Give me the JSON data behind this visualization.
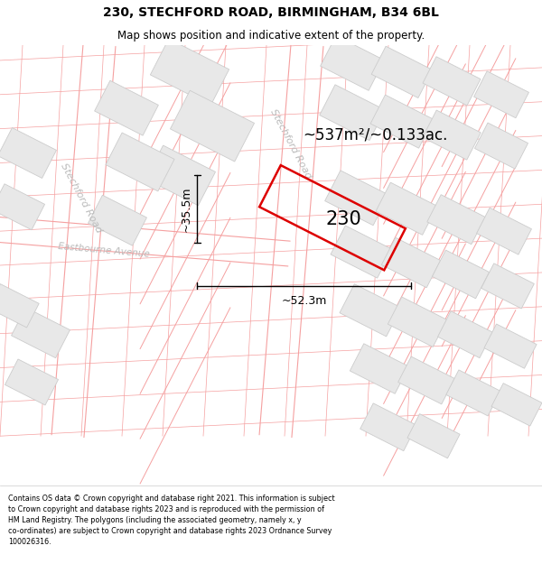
{
  "title_line1": "230, STECHFORD ROAD, BIRMINGHAM, B34 6BL",
  "title_line2": "Map shows position and indicative extent of the property.",
  "footer_text": "Contains OS data © Crown copyright and database right 2021. This information is subject to Crown copyright and database rights 2023 and is reproduced with the permission of HM Land Registry. The polygons (including the associated geometry, namely x, y co-ordinates) are subject to Crown copyright and database rights 2023 Ordnance Survey 100026316.",
  "map_bg": "#ffffff",
  "road_line_color": "#f5a0a0",
  "building_fill": "#e8e8e8",
  "building_edge": "#cccccc",
  "street_label_color": "#bbbbbb",
  "property_color": "#dd0000",
  "area_text": "~537m²/~0.133ac.",
  "dim_width": "~52.3m",
  "dim_height": "~35.5m",
  "property_label": "230",
  "road_name_upper": "Stechford Road",
  "road_name_lower": "Stechford Road",
  "avenue_name": "Eastbourne Avenue",
  "title_fontsize": 10,
  "subtitle_fontsize": 8.5,
  "footer_fontsize": 5.8
}
